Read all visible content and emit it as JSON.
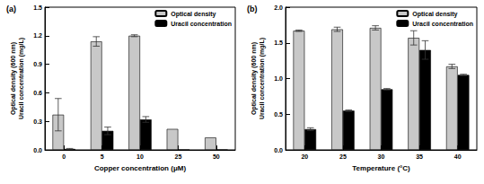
{
  "chart_data": [
    {
      "type": "bar",
      "title": "(a)",
      "xlabel": "Copper concentration (μM)",
      "ylabel": "Optical density (600 nm)\nUracil concentration (mg/L)",
      "categories": [
        "0",
        "5",
        "10",
        "25",
        "50"
      ],
      "series": [
        {
          "name": "Optical density",
          "color": "#c8c8c8",
          "values": [
            0.37,
            1.14,
            1.2,
            0.22,
            0.13
          ],
          "errors": [
            0.17,
            0.05,
            0.01,
            0,
            0
          ]
        },
        {
          "name": "Uracil concentration",
          "color": "#000000",
          "values": [
            0.01,
            0.2,
            0.32,
            0,
            0
          ],
          "errors": [
            0.005,
            0.04,
            0.03,
            0,
            0
          ]
        }
      ],
      "ylim": [
        0,
        1.5
      ],
      "yticks": [
        {
          "value": 0,
          "label": "0.0"
        },
        0.3,
        0.6,
        0.9,
        1.2,
        1.5
      ],
      "legend": "upper right",
      "grid": false
    },
    {
      "type": "bar",
      "title": "(b)",
      "xlabel": "Temperature (°C)",
      "ylabel": "Optical density (600 nm)\nUracil concentration (mg/L)",
      "categories": [
        "20",
        "25",
        "30",
        "35",
        "40"
      ],
      "series": [
        {
          "name": "Optical density",
          "color": "#c8c8c8",
          "values": [
            1.67,
            1.69,
            1.71,
            1.57,
            1.17
          ],
          "errors": [
            0.01,
            0.03,
            0.03,
            0.1,
            0.03
          ]
        },
        {
          "name": "Uracil concentration",
          "color": "#000000",
          "values": [
            0.29,
            0.55,
            0.85,
            1.4,
            1.05
          ],
          "errors": [
            0.02,
            0.01,
            0.01,
            0.13,
            0.01
          ]
        }
      ],
      "ylim": [
        0,
        2.0
      ],
      "yticks": [
        {
          "value": 0,
          "label": "0.0"
        },
        0.5,
        {
          "value": 1,
          "label": "1.0"
        },
        1.5,
        {
          "value": 2,
          "label": "2.0"
        }
      ],
      "legend": "upper right",
      "grid": false
    }
  ]
}
